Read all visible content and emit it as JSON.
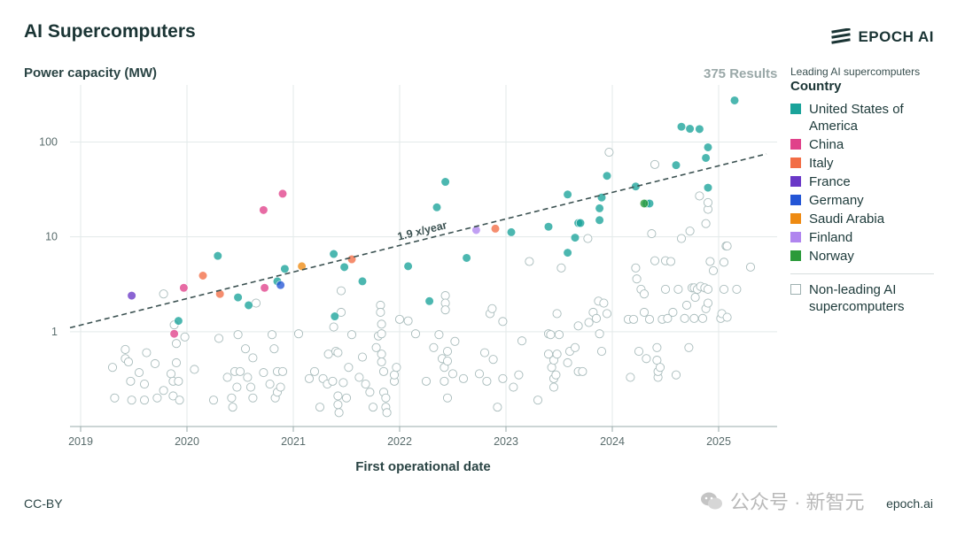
{
  "header": {
    "title": "AI Supercomputers",
    "brand": "EPOCH AI",
    "results": "375 Results"
  },
  "legend": {
    "subtitle": "Leading AI supercomputers",
    "title": "Country",
    "items": [
      {
        "label": "United States of America",
        "color": "#1aa39a"
      },
      {
        "label": "China",
        "color": "#e0418a"
      },
      {
        "label": "Italy",
        "color": "#f26d45"
      },
      {
        "label": "France",
        "color": "#6a38c7"
      },
      {
        "label": "Germany",
        "color": "#2456d6"
      },
      {
        "label": "Saudi Arabia",
        "color": "#ee8a12"
      },
      {
        "label": "Finland",
        "color": "#b085ef"
      },
      {
        "label": "Norway",
        "color": "#2b9a3a"
      }
    ],
    "other_label": "Non-leading AI supercomputers"
  },
  "footer": {
    "left": "CC-BY",
    "right": "epoch.ai"
  },
  "watermark": {
    "text": "公众号 · 新智元"
  },
  "chart_data": {
    "type": "scatter",
    "title": "AI Supercomputers",
    "ylabel": "Power capacity (MW)",
    "xlabel": "First operational date",
    "y_scale": "log",
    "ylim": [
      0.1,
      400
    ],
    "xlim": [
      2018.9,
      2025.55
    ],
    "x_ticks": [
      "2019",
      "2020",
      "2021",
      "2022",
      "2023",
      "2024",
      "2025"
    ],
    "y_ticks": [
      "1",
      "10",
      "100"
    ],
    "grid": true,
    "legend_position": "right",
    "trend": {
      "label": "1.9 x/year",
      "start": [
        2018.9,
        1.1
      ],
      "end": [
        2025.45,
        75
      ]
    },
    "series": [
      {
        "name": "United States of America",
        "color": "#1aa39a",
        "points": [
          [
            2019.92,
            1.3
          ],
          [
            2020.29,
            6.3
          ],
          [
            2020.48,
            2.3
          ],
          [
            2020.58,
            1.9
          ],
          [
            2020.85,
            3.4
          ],
          [
            2020.92,
            4.6
          ],
          [
            2021.39,
            1.45
          ],
          [
            2021.38,
            6.6
          ],
          [
            2021.48,
            4.8
          ],
          [
            2021.65,
            3.4
          ],
          [
            2022.08,
            4.9
          ],
          [
            2022.28,
            2.1
          ],
          [
            2022.35,
            20.5
          ],
          [
            2022.43,
            38
          ],
          [
            2022.63,
            6.0
          ],
          [
            2023.05,
            11.2
          ],
          [
            2023.4,
            12.8
          ],
          [
            2023.58,
            6.8
          ],
          [
            2023.58,
            28
          ],
          [
            2023.65,
            9.8
          ],
          [
            2023.68,
            14
          ],
          [
            2023.7,
            14
          ],
          [
            2023.88,
            15
          ],
          [
            2023.88,
            20
          ],
          [
            2023.9,
            26
          ],
          [
            2023.95,
            44
          ],
          [
            2024.22,
            34
          ],
          [
            2024.32,
            22.5
          ],
          [
            2024.35,
            22.5
          ],
          [
            2024.6,
            57
          ],
          [
            2024.65,
            145
          ],
          [
            2024.73,
            138
          ],
          [
            2024.82,
            137
          ],
          [
            2024.88,
            68
          ],
          [
            2024.9,
            33
          ],
          [
            2024.9,
            88
          ],
          [
            2025.15,
            275
          ]
        ]
      },
      {
        "name": "China",
        "color": "#e0418a",
        "points": [
          [
            2019.88,
            0.95
          ],
          [
            2019.97,
            2.9
          ],
          [
            2020.72,
            19.2
          ],
          [
            2020.73,
            2.9
          ],
          [
            2020.9,
            28.5
          ]
        ]
      },
      {
        "name": "Italy",
        "color": "#f26d45",
        "points": [
          [
            2020.15,
            3.9
          ],
          [
            2020.31,
            2.5
          ],
          [
            2021.55,
            5.8
          ],
          [
            2022.9,
            12.2
          ]
        ]
      },
      {
        "name": "France",
        "color": "#6a38c7",
        "points": [
          [
            2019.48,
            2.4
          ]
        ]
      },
      {
        "name": "Germany",
        "color": "#2456d6",
        "points": [
          [
            2020.88,
            3.1
          ]
        ]
      },
      {
        "name": "Saudi Arabia",
        "color": "#ee8a12",
        "points": [
          [
            2021.08,
            4.9
          ]
        ]
      },
      {
        "name": "Finland",
        "color": "#b085ef",
        "points": [
          [
            2022.72,
            11.8
          ]
        ]
      },
      {
        "name": "Norway",
        "color": "#2b9a3a",
        "points": [
          [
            2024.3,
            22.5
          ]
        ]
      },
      {
        "name": "Non-leading AI supercomputers",
        "color": "#ffffff",
        "points": [
          [
            2019.3,
            0.42
          ],
          [
            2019.32,
            0.2
          ],
          [
            2019.42,
            0.65
          ],
          [
            2019.42,
            0.52
          ],
          [
            2019.45,
            0.48
          ],
          [
            2019.47,
            0.3
          ],
          [
            2019.48,
            0.19
          ],
          [
            2019.55,
            0.37
          ],
          [
            2019.6,
            0.28
          ],
          [
            2019.6,
            0.19
          ],
          [
            2019.62,
            0.6
          ],
          [
            2019.7,
            0.46
          ],
          [
            2019.72,
            0.2
          ],
          [
            2019.78,
            2.5
          ],
          [
            2019.78,
            0.24
          ],
          [
            2019.85,
            0.36
          ],
          [
            2019.87,
            0.21
          ],
          [
            2019.87,
            0.3
          ],
          [
            2019.88,
            1.18
          ],
          [
            2019.9,
            0.47
          ],
          [
            2019.9,
            0.75
          ],
          [
            2019.92,
            0.3
          ],
          [
            2019.93,
            0.19
          ],
          [
            2019.98,
            0.88
          ],
          [
            2020.07,
            0.4
          ],
          [
            2020.25,
            0.19
          ],
          [
            2020.3,
            0.85
          ],
          [
            2020.38,
            0.33
          ],
          [
            2020.42,
            0.2
          ],
          [
            2020.43,
            0.16
          ],
          [
            2020.45,
            0.38
          ],
          [
            2020.47,
            0.26
          ],
          [
            2020.48,
            0.93
          ],
          [
            2020.5,
            0.38
          ],
          [
            2020.55,
            0.66
          ],
          [
            2020.57,
            0.33
          ],
          [
            2020.6,
            0.26
          ],
          [
            2020.62,
            0.53
          ],
          [
            2020.62,
            0.2
          ],
          [
            2020.65,
            2.0
          ],
          [
            2020.72,
            0.37
          ],
          [
            2020.78,
            0.28
          ],
          [
            2020.8,
            0.93
          ],
          [
            2020.82,
            0.66
          ],
          [
            2020.83,
            0.2
          ],
          [
            2020.85,
            0.38
          ],
          [
            2020.85,
            0.23
          ],
          [
            2020.88,
            0.26
          ],
          [
            2020.9,
            0.38
          ],
          [
            2021.05,
            0.95
          ],
          [
            2021.15,
            0.32
          ],
          [
            2021.2,
            0.38
          ],
          [
            2021.25,
            0.16
          ],
          [
            2021.28,
            0.32
          ],
          [
            2021.32,
            0.28
          ],
          [
            2021.33,
            0.58
          ],
          [
            2021.37,
            0.3
          ],
          [
            2021.38,
            1.12
          ],
          [
            2021.4,
            0.62
          ],
          [
            2021.42,
            0.6
          ],
          [
            2021.42,
            0.17
          ],
          [
            2021.42,
            0.21
          ],
          [
            2021.43,
            0.14
          ],
          [
            2021.45,
            1.6
          ],
          [
            2021.45,
            2.7
          ],
          [
            2021.47,
            0.29
          ],
          [
            2021.5,
            0.2
          ],
          [
            2021.52,
            0.42
          ],
          [
            2021.55,
            0.93
          ],
          [
            2021.62,
            0.33
          ],
          [
            2021.65,
            0.54
          ],
          [
            2021.68,
            0.28
          ],
          [
            2021.72,
            0.23
          ],
          [
            2021.75,
            0.16
          ],
          [
            2021.78,
            0.68
          ],
          [
            2021.8,
            0.9
          ],
          [
            2021.82,
            1.9
          ],
          [
            2021.82,
            1.6
          ],
          [
            2021.83,
            1.2
          ],
          [
            2021.83,
            0.95
          ],
          [
            2021.83,
            0.58
          ],
          [
            2021.83,
            0.48
          ],
          [
            2021.85,
            0.38
          ],
          [
            2021.85,
            0.23
          ],
          [
            2021.87,
            0.2
          ],
          [
            2021.87,
            0.16
          ],
          [
            2021.88,
            0.14
          ],
          [
            2021.95,
            0.3
          ],
          [
            2021.95,
            0.35
          ],
          [
            2021.97,
            0.42
          ],
          [
            2022.0,
            1.35
          ],
          [
            2022.08,
            1.3
          ],
          [
            2022.15,
            0.95
          ],
          [
            2022.25,
            0.3
          ],
          [
            2022.32,
            0.68
          ],
          [
            2022.37,
            0.93
          ],
          [
            2022.4,
            0.52
          ],
          [
            2022.42,
            0.42
          ],
          [
            2022.42,
            0.3
          ],
          [
            2022.43,
            2.4
          ],
          [
            2022.43,
            2.0
          ],
          [
            2022.43,
            1.7
          ],
          [
            2022.45,
            0.62
          ],
          [
            2022.45,
            0.49
          ],
          [
            2022.45,
            0.2
          ],
          [
            2022.5,
            0.36
          ],
          [
            2022.52,
            0.79
          ],
          [
            2022.6,
            0.32
          ],
          [
            2022.75,
            0.36
          ],
          [
            2022.8,
            0.6
          ],
          [
            2022.82,
            0.3
          ],
          [
            2022.85,
            1.55
          ],
          [
            2022.87,
            1.75
          ],
          [
            2022.88,
            0.51
          ],
          [
            2022.92,
            0.16
          ],
          [
            2022.97,
            0.32
          ],
          [
            2022.97,
            1.28
          ],
          [
            2023.07,
            0.26
          ],
          [
            2023.12,
            0.35
          ],
          [
            2023.15,
            0.8
          ],
          [
            2023.22,
            5.5
          ],
          [
            2023.3,
            0.19
          ],
          [
            2023.4,
            0.95
          ],
          [
            2023.4,
            0.58
          ],
          [
            2023.42,
            0.93
          ],
          [
            2023.43,
            0.42
          ],
          [
            2023.45,
            0.26
          ],
          [
            2023.45,
            0.32
          ],
          [
            2023.45,
            0.5
          ],
          [
            2023.47,
            0.35
          ],
          [
            2023.48,
            0.58
          ],
          [
            2023.48,
            1.55
          ],
          [
            2023.5,
            0.93
          ],
          [
            2023.52,
            4.7
          ],
          [
            2023.58,
            0.47
          ],
          [
            2023.6,
            0.62
          ],
          [
            2023.65,
            0.68
          ],
          [
            2023.68,
            1.15
          ],
          [
            2023.68,
            0.38
          ],
          [
            2023.72,
            0.38
          ],
          [
            2023.77,
            9.6
          ],
          [
            2023.78,
            1.25
          ],
          [
            2023.82,
            1.6
          ],
          [
            2023.85,
            1.38
          ],
          [
            2023.87,
            2.1
          ],
          [
            2023.88,
            0.95
          ],
          [
            2023.9,
            0.62
          ],
          [
            2023.92,
            2.0
          ],
          [
            2023.95,
            1.55
          ],
          [
            2023.97,
            78
          ],
          [
            2024.15,
            1.35
          ],
          [
            2024.17,
            0.33
          ],
          [
            2024.2,
            1.35
          ],
          [
            2024.22,
            4.7
          ],
          [
            2024.23,
            3.6
          ],
          [
            2024.25,
            0.62
          ],
          [
            2024.27,
            2.8
          ],
          [
            2024.3,
            2.5
          ],
          [
            2024.3,
            1.6
          ],
          [
            2024.32,
            0.52
          ],
          [
            2024.35,
            1.35
          ],
          [
            2024.37,
            10.8
          ],
          [
            2024.4,
            5.6
          ],
          [
            2024.4,
            58
          ],
          [
            2024.42,
            0.68
          ],
          [
            2024.42,
            0.5
          ],
          [
            2024.43,
            0.33
          ],
          [
            2024.43,
            0.38
          ],
          [
            2024.45,
            0.42
          ],
          [
            2024.47,
            1.35
          ],
          [
            2024.5,
            5.6
          ],
          [
            2024.5,
            2.8
          ],
          [
            2024.52,
            1.38
          ],
          [
            2024.55,
            5.5
          ],
          [
            2024.57,
            1.6
          ],
          [
            2024.6,
            0.35
          ],
          [
            2024.62,
            2.8
          ],
          [
            2024.65,
            9.6
          ],
          [
            2024.68,
            1.38
          ],
          [
            2024.7,
            1.9
          ],
          [
            2024.72,
            0.68
          ],
          [
            2024.73,
            11.5
          ],
          [
            2024.75,
            2.9
          ],
          [
            2024.77,
            2.9
          ],
          [
            2024.77,
            1.38
          ],
          [
            2024.78,
            2.3
          ],
          [
            2024.8,
            2.8
          ],
          [
            2024.82,
            27
          ],
          [
            2024.83,
            3.0
          ],
          [
            2024.85,
            1.38
          ],
          [
            2024.87,
            2.9
          ],
          [
            2024.88,
            1.75
          ],
          [
            2024.88,
            13.8
          ],
          [
            2024.9,
            2.0
          ],
          [
            2024.9,
            2.8
          ],
          [
            2024.9,
            19.5
          ],
          [
            2024.9,
            23
          ],
          [
            2024.92,
            5.5
          ],
          [
            2024.95,
            4.4
          ],
          [
            2025.02,
            1.38
          ],
          [
            2025.03,
            1.55
          ],
          [
            2025.05,
            2.8
          ],
          [
            2025.05,
            5.4
          ],
          [
            2025.07,
            8.0
          ],
          [
            2025.08,
            8.0
          ],
          [
            2025.08,
            1.42
          ],
          [
            2025.17,
            2.8
          ],
          [
            2025.3,
            4.8
          ]
        ]
      }
    ]
  }
}
